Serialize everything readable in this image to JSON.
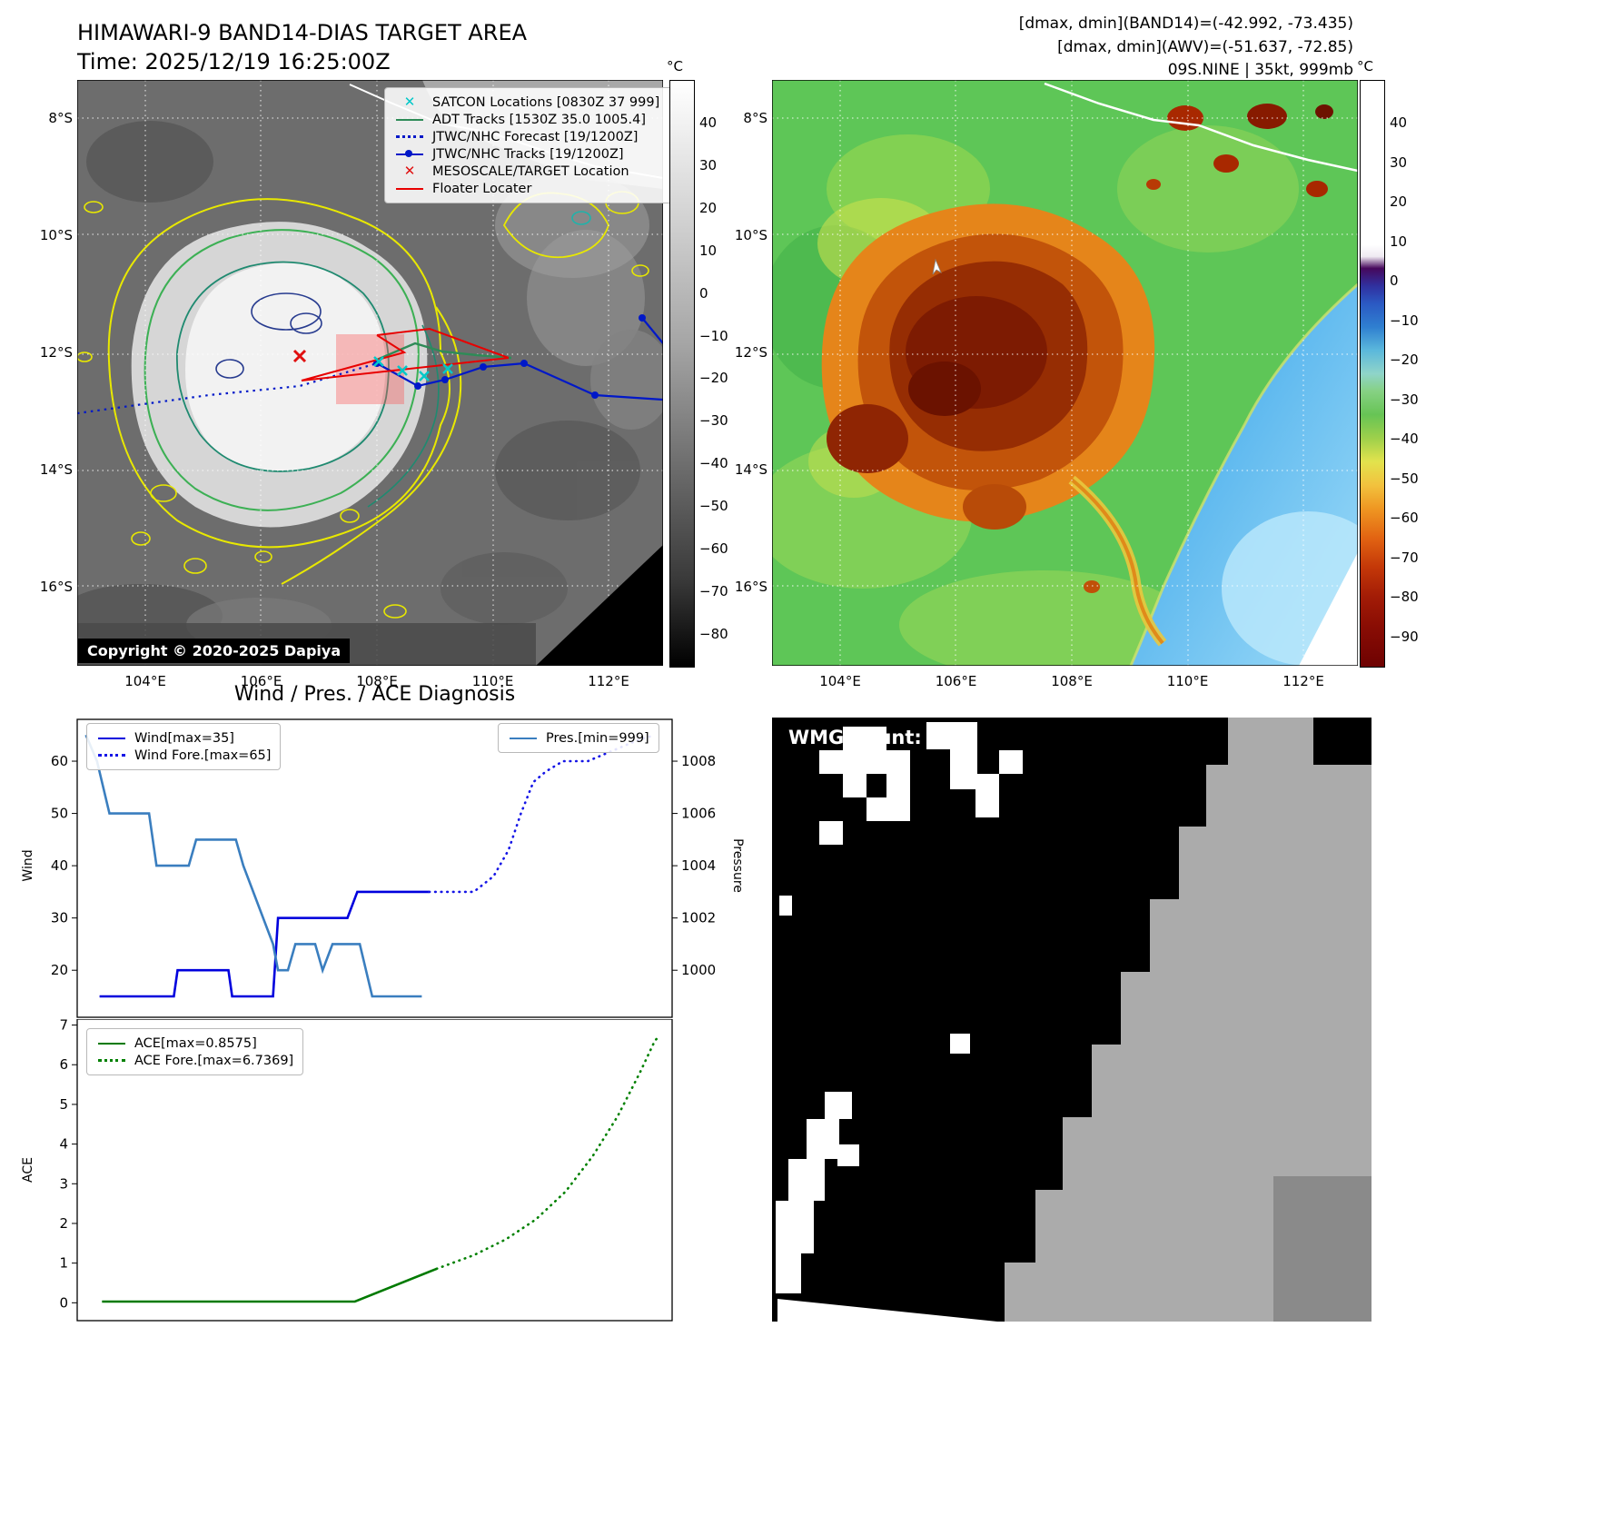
{
  "header": {
    "title_line1": "HIMAWARI-9 BAND14-DIAS TARGET AREA",
    "title_line2": "Time: 2025/12/19 16:25:00Z",
    "dmax_dmin_band14": "[dmax, dmin](BAND14)=(-42.992, -73.435)",
    "dmax_dmin_awv": "[dmax, dmin](AWV)=(-51.637, -72.85)",
    "storm_info": "09S.NINE | 35kt, 999mb"
  },
  "colors": {
    "wind": "#0000dd",
    "wind_forecast": "#1515e6",
    "pressure": "#3a7ebf",
    "ace": "#007a00",
    "track_blue": "#0018c8",
    "adt_green": "#2e8b57",
    "floater_red": "#e80000",
    "satcon_cyan": "#00c8c8",
    "target_red": "#e01010"
  },
  "band14_panel": {
    "legend": [
      {
        "label": "SATCON Locations [0830Z 37 999]"
      },
      {
        "label": "ADT Tracks [1530Z 35.0 1005.4]"
      },
      {
        "label": "JTWC/NHC Forecast [19/1200Z]"
      },
      {
        "label": "JTWC/NHC Tracks [19/1200Z]"
      },
      {
        "label": "MESOSCALE/TARGET Location"
      },
      {
        "label": "Floater Locater"
      }
    ],
    "copyright": "Copyright © 2020-2025 Dapiya",
    "lat_ticks": [
      "8°S",
      "10°S",
      "12°S",
      "14°S",
      "16°S"
    ],
    "lon_ticks": [
      "104°E",
      "106°E",
      "108°E",
      "110°E",
      "112°E"
    ],
    "colorbar_unit": "°C",
    "colorbar_ticks": [
      "40",
      "30",
      "20",
      "10",
      "0",
      "−10",
      "−20",
      "−30",
      "−40",
      "−50",
      "−60",
      "−70",
      "−80"
    ]
  },
  "awv_panel": {
    "lat_ticks": [
      "8°S",
      "10°S",
      "12°S",
      "14°S",
      "16°S"
    ],
    "lon_ticks": [
      "104°E",
      "106°E",
      "108°E",
      "110°E",
      "112°E"
    ],
    "colorbar_unit": "°C",
    "colorbar_ticks": [
      "40",
      "30",
      "20",
      "10",
      "0",
      "−10",
      "−20",
      "−30",
      "−40",
      "−50",
      "−60",
      "−70",
      "−80",
      "−90"
    ]
  },
  "diagnosis": {
    "title": "Wind / Pres. / ACE Diagnosis"
  },
  "wmg_panel": {
    "label": "WMG Count: 0"
  },
  "chart_data": [
    {
      "type": "line",
      "panel": "wind_pressure",
      "ylabel_left": "Wind",
      "ylabel_right": "Pressure",
      "ylim_left": [
        11,
        68
      ],
      "yticks_left": [
        20,
        30,
        40,
        50,
        60
      ],
      "yticks_right": [
        1000,
        1002,
        1004,
        1006,
        1008
      ],
      "right_map": {
        "base": 20,
        "offset": 1000,
        "scale": 5
      },
      "x_range": [
        0,
        24
      ],
      "series": [
        {
          "name": "Wind[max=35]",
          "axis": "left",
          "style": "solid",
          "color": "#0000dd",
          "points": [
            [
              0.9,
              15
            ],
            [
              3.9,
              15
            ],
            [
              4.05,
              20
            ],
            [
              6.1,
              20
            ],
            [
              6.25,
              15
            ],
            [
              7.9,
              15
            ],
            [
              8.1,
              30
            ],
            [
              10.9,
              30
            ],
            [
              11.3,
              35
            ],
            [
              14.2,
              35
            ]
          ]
        },
        {
          "name": "Wind Fore.[max=65]",
          "axis": "left",
          "style": "dotted",
          "color": "#1515e6",
          "points": [
            [
              14.2,
              35
            ],
            [
              16.0,
              35
            ],
            [
              16.8,
              38
            ],
            [
              17.4,
              43
            ],
            [
              17.9,
              50
            ],
            [
              18.4,
              56
            ],
            [
              18.9,
              58
            ],
            [
              19.6,
              60
            ],
            [
              20.6,
              60
            ],
            [
              21.6,
              62
            ],
            [
              22.6,
              64
            ],
            [
              23.3,
              65
            ]
          ]
        },
        {
          "name": "Pres.[min=999]",
          "axis": "right",
          "style": "solid",
          "color": "#3a7ebf",
          "points": [
            [
              0.35,
              1009
            ],
            [
              0.8,
              1008
            ],
            [
              1.3,
              1006
            ],
            [
              2.9,
              1006
            ],
            [
              3.2,
              1004
            ],
            [
              4.5,
              1004
            ],
            [
              4.8,
              1005
            ],
            [
              6.4,
              1005
            ],
            [
              6.7,
              1004
            ],
            [
              7.9,
              1001
            ],
            [
              8.1,
              1000
            ],
            [
              8.5,
              1000
            ],
            [
              8.8,
              1001
            ],
            [
              9.6,
              1001
            ],
            [
              9.9,
              1000
            ],
            [
              10.3,
              1001
            ],
            [
              11.4,
              1001
            ],
            [
              11.9,
              999
            ],
            [
              13.9,
              999
            ]
          ]
        }
      ]
    },
    {
      "type": "line",
      "panel": "ace",
      "ylabel_left": "ACE",
      "ylim_left": [
        -0.45,
        7.15
      ],
      "yticks_left": [
        0,
        1,
        2,
        3,
        4,
        5,
        6,
        7
      ],
      "x_range": [
        0,
        24
      ],
      "series": [
        {
          "name": "ACE[max=0.8575]",
          "axis": "left",
          "style": "solid",
          "color": "#007a00",
          "points": [
            [
              1.0,
              0.03
            ],
            [
              11.2,
              0.03
            ],
            [
              14.5,
              0.8575
            ]
          ]
        },
        {
          "name": "ACE Fore.[max=6.7369]",
          "axis": "left",
          "style": "dotted",
          "color": "#008000",
          "points": [
            [
              14.5,
              0.8575
            ],
            [
              16.0,
              1.2
            ],
            [
              17.3,
              1.6
            ],
            [
              18.5,
              2.1
            ],
            [
              19.7,
              2.8
            ],
            [
              20.8,
              3.7
            ],
            [
              21.8,
              4.7
            ],
            [
              22.7,
              5.8
            ],
            [
              23.3,
              6.6
            ],
            [
              23.5,
              6.74
            ]
          ]
        }
      ]
    }
  ]
}
